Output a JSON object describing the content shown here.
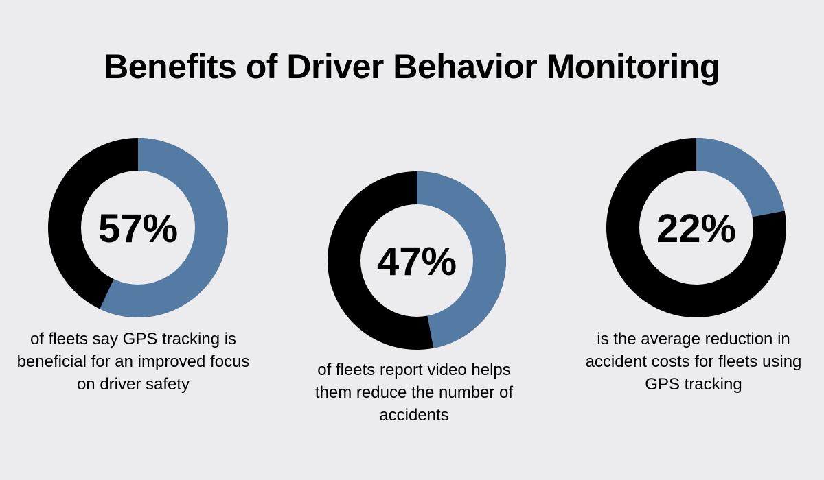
{
  "title": "Benefits of Driver Behavior Monitoring",
  "colors": {
    "background": "#ececef",
    "accent": "#537ba3",
    "remainder": "#000000",
    "center": "#ececef",
    "text": "#000000"
  },
  "chart_data": [
    {
      "type": "pie",
      "title": "57%",
      "categories": [
        "share",
        "remainder"
      ],
      "values": [
        57,
        43
      ],
      "caption": "of fleets say GPS tracking is beneficial for an improved focus on driver safety"
    },
    {
      "type": "pie",
      "title": "47%",
      "categories": [
        "share",
        "remainder"
      ],
      "values": [
        47,
        53
      ],
      "caption": "of fleets report video helps them reduce the number of accidents"
    },
    {
      "type": "pie",
      "title": "22%",
      "categories": [
        "share",
        "remainder"
      ],
      "values": [
        22,
        78
      ],
      "caption": "is the average reduction in accident costs for fleets using GPS tracking"
    }
  ]
}
